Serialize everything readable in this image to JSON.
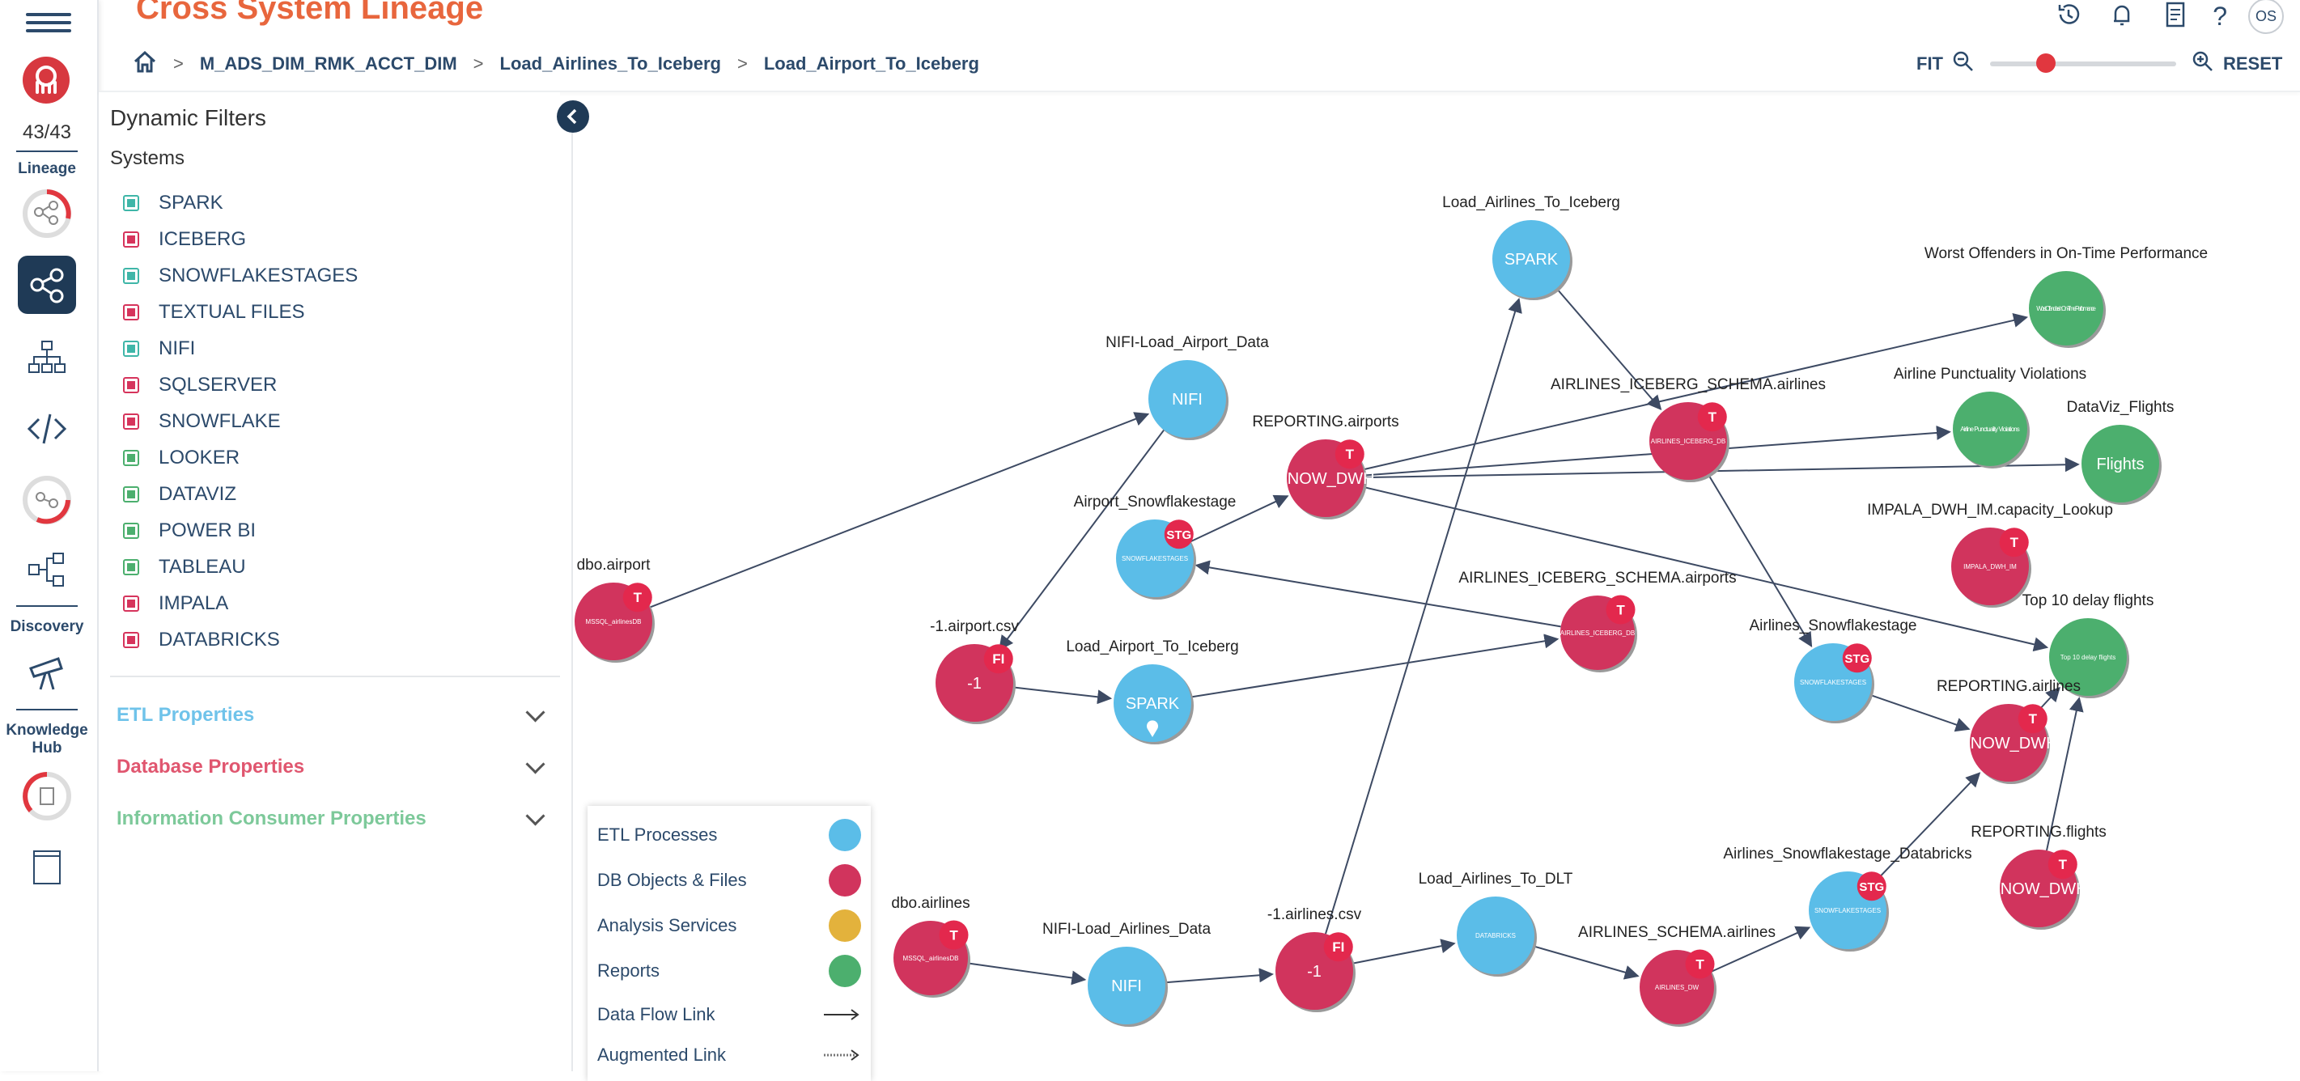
{
  "app": {
    "title": "Cross System Lineage",
    "lineage_count": "43/43"
  },
  "rail": {
    "lineage_label": "Lineage",
    "discovery_label": "Discovery",
    "knowledge_label": "Knowledge Hub"
  },
  "breadcrumb": [
    "M_ADS_DIM_RMK_ACCT_DIM",
    "Load_Airlines_To_Iceberg",
    "Load_Airport_To_Iceberg"
  ],
  "toolbar": {
    "fit_label": "FIT",
    "reset_label": "RESET",
    "zoom_level": 0.3,
    "user_initials": "OS",
    "help_label": "?"
  },
  "filters": {
    "title": "Dynamic Filters",
    "systems_label": "Systems",
    "systems": [
      {
        "name": "SPARK",
        "color": "#3fb6a8"
      },
      {
        "name": "ICEBERG",
        "color": "#d6345c"
      },
      {
        "name": "SNOWFLAKESTAGES",
        "color": "#3fb6a8"
      },
      {
        "name": "TEXTUAL FILES",
        "color": "#d6345c"
      },
      {
        "name": "NIFI",
        "color": "#3fb6a8"
      },
      {
        "name": "SQLSERVER",
        "color": "#d6345c"
      },
      {
        "name": "SNOWFLAKE",
        "color": "#d6345c"
      },
      {
        "name": "LOOKER",
        "color": "#4caf6e"
      },
      {
        "name": "DATAVIZ",
        "color": "#4caf6e"
      },
      {
        "name": "POWER BI",
        "color": "#4caf6e"
      },
      {
        "name": "TABLEAU",
        "color": "#4caf6e"
      },
      {
        "name": "IMPALA",
        "color": "#d6345c"
      },
      {
        "name": "DATABRICKS",
        "color": "#d6345c"
      }
    ],
    "sections": [
      {
        "label": "ETL Properties",
        "color": "#6fc3ea"
      },
      {
        "label": "Database Properties",
        "color": "#e0566f"
      },
      {
        "label": "Information Consumer Properties",
        "color": "#7dc99a"
      }
    ]
  },
  "legend": {
    "items": [
      {
        "label": "ETL Processes",
        "color": "#5bbde8"
      },
      {
        "label": "DB Objects & Files",
        "color": "#d1345d"
      },
      {
        "label": "Analysis Services",
        "color": "#e3b23c"
      },
      {
        "label": "Reports",
        "color": "#4caf6e"
      }
    ],
    "flow_label": "Data Flow Link",
    "augmented_label": "Augmented Link"
  },
  "colors": {
    "etl": "#5bbde8",
    "db": "#d1345d",
    "report": "#4caf6e",
    "badge": "#e3284d",
    "brand": "#e8663d",
    "navy": "#2c4a6b"
  },
  "graph": {
    "nodes": [
      {
        "id": "dbo_airport",
        "label": "dbo.airport",
        "type": "db",
        "inner": "MSSQL_airlinesDB",
        "badge": "T"
      },
      {
        "id": "nifi_airport",
        "label": "NIFI-Load_Airport_Data",
        "type": "etl",
        "inner": "NIFI",
        "badge": ""
      },
      {
        "id": "airport_csv",
        "label": "-1.airport.csv",
        "type": "db",
        "inner": "-1",
        "badge": "FI"
      },
      {
        "id": "airport_snow",
        "label": "Airport_Snowflakestage",
        "type": "etl",
        "inner": "SNOWFLAKESTAGES",
        "badge": "STG"
      },
      {
        "id": "load_airport_iceberg",
        "label": "Load_Airport_To_Iceberg",
        "type": "etl",
        "inner": "SPARK",
        "badge": "",
        "pin": true
      },
      {
        "id": "rep_airports",
        "label": "REPORTING.airports",
        "type": "db",
        "inner": "SNOW_DWH",
        "badge": "T"
      },
      {
        "id": "ice_airports",
        "label": "AIRLINES_ICEBERG_SCHEMA.airports",
        "type": "db",
        "inner": "AIRLINES_ICEBERG_DB",
        "badge": "T"
      },
      {
        "id": "load_airlines_iceberg",
        "label": "Load_Airlines_To_Iceberg",
        "type": "etl",
        "inner": "SPARK",
        "badge": ""
      },
      {
        "id": "ice_airlines",
        "label": "AIRLINES_ICEBERG_SCHEMA.airlines",
        "type": "db",
        "inner": "AIRLINES_ICEBERG_DB",
        "badge": "T"
      },
      {
        "id": "worst",
        "label": "Worst Offenders in On-Time Performance",
        "type": "report",
        "inner": "Worst Offenders in On-Time Performance",
        "badge": ""
      },
      {
        "id": "punct",
        "label": "Airline Punctuality Violations",
        "type": "report",
        "inner": "Airline Punctuality Violations",
        "badge": ""
      },
      {
        "id": "dataviz_flights",
        "label": "DataViz_Flights",
        "type": "report",
        "inner": "Flights",
        "badge": ""
      },
      {
        "id": "impala_cap",
        "label": "IMPALA_DWH_IM.capacity_Lookup",
        "type": "db",
        "inner": "IMPALA_DWH_IM",
        "badge": "T"
      },
      {
        "id": "top10",
        "label": "Top 10 delay flights",
        "type": "report",
        "inner": "Top 10 delay flights",
        "badge": ""
      },
      {
        "id": "airlines_snow",
        "label": "Airlines_Snowflakestage",
        "type": "etl",
        "inner": "SNOWFLAKESTAGES",
        "badge": "STG"
      },
      {
        "id": "rep_airlines",
        "label": "REPORTING.airlines",
        "type": "db",
        "inner": "SNOW_DWH",
        "badge": "T"
      },
      {
        "id": "rep_flights",
        "label": "REPORTING.flights",
        "type": "db",
        "inner": "SNOW_DWH",
        "badge": "T"
      },
      {
        "id": "airlines_snow_dbx",
        "label": "Airlines_Snowflakestage_Databricks",
        "type": "etl",
        "inner": "SNOWFLAKESTAGES",
        "badge": "STG"
      },
      {
        "id": "dbo_airlines",
        "label": "dbo.airlines",
        "type": "db",
        "inner": "MSSQL_airlinesDB",
        "badge": "T"
      },
      {
        "id": "nifi_airlines",
        "label": "NIFI-Load_Airlines_Data",
        "type": "etl",
        "inner": "NIFI",
        "badge": ""
      },
      {
        "id": "airlines_csv",
        "label": "-1.airlines.csv",
        "type": "db",
        "inner": "-1",
        "badge": "FI"
      },
      {
        "id": "load_dlt",
        "label": "Load_Airlines_To_DLT",
        "type": "etl",
        "inner": "DATABRICKS",
        "badge": ""
      },
      {
        "id": "schema_airlines",
        "label": "AIRLINES_SCHEMA.airlines",
        "type": "db",
        "inner": "AIRLINES_DW",
        "badge": "T"
      }
    ],
    "edges": [
      [
        "dbo_airport",
        "nifi_airport"
      ],
      [
        "nifi_airport",
        "airport_csv"
      ],
      [
        "airport_csv",
        "load_airport_iceberg"
      ],
      [
        "load_airport_iceberg",
        "ice_airports"
      ],
      [
        "ice_airports",
        "airport_snow"
      ],
      [
        "airport_snow",
        "rep_airports"
      ],
      [
        "rep_airports",
        "worst"
      ],
      [
        "rep_airports",
        "punct"
      ],
      [
        "rep_airports",
        "dataviz_flights"
      ],
      [
        "rep_airports",
        "top10"
      ],
      [
        "load_airlines_iceberg",
        "ice_airlines"
      ],
      [
        "ice_airlines",
        "airlines_snow"
      ],
      [
        "airlines_snow",
        "rep_airlines"
      ],
      [
        "rep_airlines",
        "top10"
      ],
      [
        "rep_flights",
        "top10"
      ],
      [
        "dbo_airlines",
        "nifi_airlines"
      ],
      [
        "nifi_airlines",
        "airlines_csv"
      ],
      [
        "airlines_csv",
        "load_airlines_iceberg"
      ],
      [
        "airlines_csv",
        "load_dlt"
      ],
      [
        "load_dlt",
        "schema_airlines"
      ],
      [
        "schema_airlines",
        "airlines_snow_dbx"
      ],
      [
        "airlines_snow_dbx",
        "rep_airlines"
      ]
    ]
  }
}
